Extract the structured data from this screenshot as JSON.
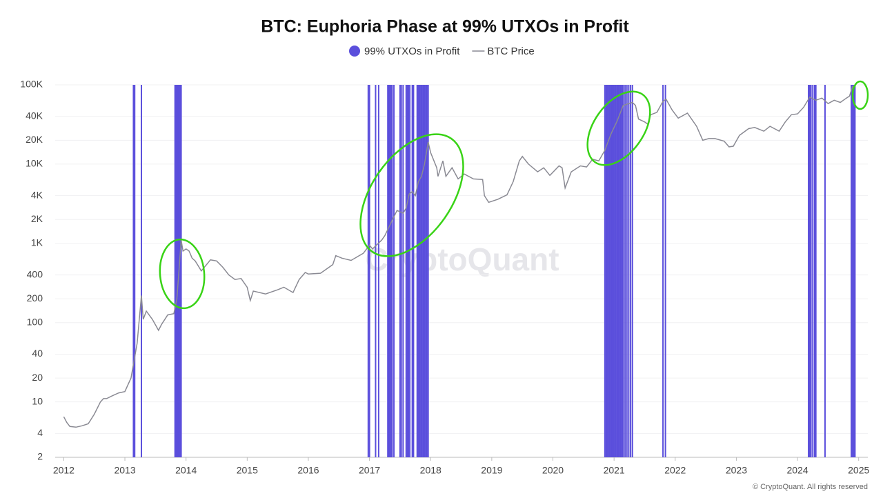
{
  "chart_data": {
    "type": "line_with_flags",
    "title": "BTC: Euphoria Phase at 99% UTXOs in Profit",
    "watermark": "CryptoQuant",
    "footer": "© CryptoQuant. All rights reserved",
    "log_y": true,
    "grid": true,
    "xlim": [
      2011.86,
      2025.15
    ],
    "xticks": [
      2012,
      2013,
      2014,
      2015,
      2016,
      2017,
      2018,
      2019,
      2020,
      2021,
      2022,
      2023,
      2024,
      2025
    ],
    "ylim": [
      2,
      100000
    ],
    "yticks": [
      2,
      4,
      10,
      20,
      40,
      100,
      200,
      400,
      {
        "value": 1000,
        "label": "1K"
      },
      {
        "value": 2000,
        "label": "2K"
      },
      {
        "value": 4000,
        "label": "4K"
      },
      {
        "value": 10000,
        "label": "10K"
      },
      {
        "value": 20000,
        "label": "20K"
      },
      {
        "value": 40000,
        "label": "40K"
      },
      {
        "value": 100000,
        "label": "100K"
      }
    ],
    "series": [
      {
        "name": "99% UTXOs in Profit",
        "kind": "flag",
        "color": "#5b4fdc",
        "x": [
          2013.14,
          2013.16,
          2013.27,
          2013.82,
          2013.83,
          2013.84,
          2013.85,
          2013.86,
          2013.87,
          2013.88,
          2013.89,
          2013.9,
          2013.91,
          2013.92,
          2016.98,
          2017.0,
          2017.1,
          2017.15,
          2017.3,
          2017.31,
          2017.33,
          2017.35,
          2017.37,
          2017.4,
          2017.5,
          2017.52,
          2017.55,
          2017.6,
          2017.62,
          2017.64,
          2017.66,
          2017.7,
          2017.72,
          2017.78,
          2017.8,
          2017.82,
          2017.84,
          2017.86,
          2017.88,
          2017.9,
          2017.92,
          2017.94,
          2017.96,
          2020.85,
          2020.87,
          2020.89,
          2020.91,
          2020.93,
          2020.95,
          2020.97,
          2020.99,
          2021.01,
          2021.03,
          2021.05,
          2021.07,
          2021.09,
          2021.11,
          2021.13,
          2021.15,
          2021.18,
          2021.21,
          2021.24,
          2021.27,
          2021.3,
          2021.8,
          2021.84,
          2024.18,
          2024.2,
          2024.22,
          2024.25,
          2024.28,
          2024.3,
          2024.45,
          2024.88,
          2024.9,
          2024.92,
          2024.94
        ]
      },
      {
        "name": "BTC Price",
        "kind": "line",
        "color": "#8a8a93",
        "x": [
          2012.0,
          2012.05,
          2012.1,
          2012.2,
          2012.3,
          2012.4,
          2012.5,
          2012.6,
          2012.65,
          2012.7,
          2012.8,
          2012.9,
          2013.0,
          2013.1,
          2013.15,
          2013.2,
          2013.27,
          2013.3,
          2013.35,
          2013.45,
          2013.55,
          2013.6,
          2013.7,
          2013.8,
          2013.85,
          2013.88,
          2013.92,
          2013.95,
          2014.0,
          2014.05,
          2014.1,
          2014.15,
          2014.25,
          2014.3,
          2014.4,
          2014.5,
          2014.6,
          2014.7,
          2014.8,
          2014.9,
          2015.0,
          2015.05,
          2015.1,
          2015.3,
          2015.5,
          2015.6,
          2015.75,
          2015.85,
          2015.95,
          2016.0,
          2016.2,
          2016.4,
          2016.45,
          2016.55,
          2016.7,
          2016.9,
          2017.0,
          2017.05,
          2017.2,
          2017.25,
          2017.35,
          2017.45,
          2017.55,
          2017.6,
          2017.65,
          2017.7,
          2017.75,
          2017.8,
          2017.85,
          2017.9,
          2017.96,
          2018.0,
          2018.1,
          2018.12,
          2018.2,
          2018.25,
          2018.35,
          2018.45,
          2018.55,
          2018.7,
          2018.85,
          2018.88,
          2018.95,
          2019.1,
          2019.25,
          2019.35,
          2019.45,
          2019.5,
          2019.6,
          2019.75,
          2019.85,
          2019.95,
          2020.1,
          2020.15,
          2020.2,
          2020.3,
          2020.45,
          2020.55,
          2020.65,
          2020.75,
          2020.85,
          2020.95,
          2021.05,
          2021.15,
          2021.3,
          2021.35,
          2021.4,
          2021.5,
          2021.55,
          2021.6,
          2021.7,
          2021.8,
          2021.85,
          2021.95,
          2022.05,
          2022.2,
          2022.35,
          2022.45,
          2022.55,
          2022.65,
          2022.8,
          2022.88,
          2022.95,
          2023.05,
          2023.2,
          2023.3,
          2023.45,
          2023.55,
          2023.7,
          2023.8,
          2023.9,
          2024.0,
          2024.1,
          2024.2,
          2024.3,
          2024.4,
          2024.5,
          2024.6,
          2024.7,
          2024.8,
          2024.85,
          2024.9,
          2024.95
        ],
        "values": [
          6.5,
          5.5,
          4.9,
          4.8,
          5.0,
          5.3,
          7,
          10,
          11,
          11,
          12,
          13,
          13.5,
          20,
          33,
          55,
          220,
          110,
          140,
          110,
          80,
          95,
          125,
          130,
          200,
          400,
          1100,
          800,
          850,
          800,
          650,
          600,
          450,
          500,
          620,
          600,
          500,
          400,
          350,
          360,
          280,
          190,
          250,
          230,
          260,
          280,
          240,
          350,
          430,
          410,
          420,
          540,
          700,
          650,
          610,
          750,
          950,
          850,
          1100,
          1250,
          1800,
          2600,
          2400,
          2800,
          4200,
          4500,
          4000,
          6000,
          7000,
          10000,
          19000,
          14000,
          9000,
          7000,
          11000,
          7000,
          9000,
          6500,
          7500,
          6500,
          6400,
          4000,
          3300,
          3600,
          4100,
          6000,
          11000,
          12500,
          10000,
          8000,
          9000,
          7200,
          9500,
          9000,
          5000,
          8000,
          9500,
          9200,
          11500,
          11000,
          15000,
          24000,
          35000,
          55000,
          60000,
          55000,
          37000,
          34000,
          32000,
          42000,
          45000,
          62000,
          66000,
          48000,
          38000,
          44000,
          30000,
          20000,
          21000,
          21000,
          19500,
          16500,
          16800,
          23000,
          28000,
          29000,
          26000,
          30000,
          26000,
          34000,
          42000,
          43000,
          52000,
          70000,
          64000,
          68000,
          58000,
          64000,
          60000,
          68000,
          72000,
          95000,
          96000
        ]
      }
    ]
  }
}
